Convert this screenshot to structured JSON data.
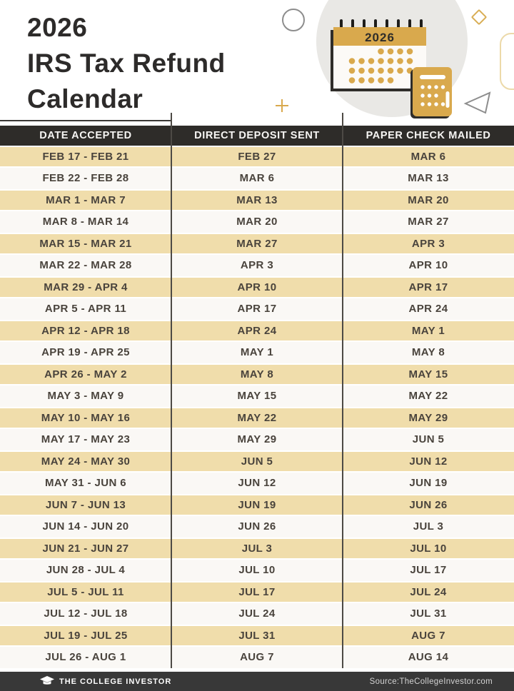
{
  "page": {
    "title_lines": [
      "2026",
      "IRS Tax Refund",
      "Calendar"
    ]
  },
  "illustration": {
    "calendar_year": "2026"
  },
  "chart_data": {
    "type": "table",
    "title": "2026 IRS Tax Refund Calendar",
    "columns": [
      "DATE ACCEPTED",
      "DIRECT DEPOSIT SENT",
      "PAPER CHECK MAILED"
    ],
    "rows": [
      [
        "FEB 17 - FEB 21",
        "FEB 27",
        "MAR 6"
      ],
      [
        "FEB 22 - FEB 28",
        "MAR 6",
        "MAR 13"
      ],
      [
        "MAR 1 - MAR 7",
        "MAR 13",
        "MAR 20"
      ],
      [
        "MAR 8 - MAR 14",
        "MAR 20",
        "MAR 27"
      ],
      [
        "MAR 15 - MAR 21",
        "MAR 27",
        "APR 3"
      ],
      [
        "MAR 22 - MAR 28",
        "APR 3",
        "APR 10"
      ],
      [
        "MAR 29 - APR 4",
        "APR 10",
        "APR 17"
      ],
      [
        "APR 5 - APR 11",
        "APR 17",
        "APR 24"
      ],
      [
        "APR 12 - APR 18",
        "APR 24",
        "MAY 1"
      ],
      [
        "APR 19 - APR 25",
        "MAY 1",
        "MAY 8"
      ],
      [
        "APR 26 - MAY 2",
        "MAY 8",
        "MAY 15"
      ],
      [
        "MAY 3 - MAY 9",
        "MAY 15",
        "MAY 22"
      ],
      [
        "MAY 10 - MAY 16",
        "MAY 22",
        "MAY 29"
      ],
      [
        "MAY 17 - MAY 23",
        "MAY 29",
        "JUN 5"
      ],
      [
        "MAY 24 - MAY 30",
        "JUN 5",
        "JUN 12"
      ],
      [
        "MAY 31 - JUN 6",
        "JUN 12",
        "JUN 19"
      ],
      [
        "JUN 7 - JUN 13",
        "JUN 19",
        "JUN 26"
      ],
      [
        "JUN 14 - JUN 20",
        "JUN 26",
        "JUL 3"
      ],
      [
        "JUN 21 - JUN 27",
        "JUL 3",
        "JUL 10"
      ],
      [
        "JUN 28 - JUL 4",
        "JUL 10",
        "JUL 17"
      ],
      [
        "JUL 5 - JUL 11",
        "JUL 17",
        "JUL 24"
      ],
      [
        "JUL 12 - JUL 18",
        "JUL 24",
        "JUL 31"
      ],
      [
        "JUL 19 - JUL 25",
        "JUL 31",
        "AUG 7"
      ],
      [
        "JUL 26 - AUG 1",
        "AUG 7",
        "AUG 14"
      ]
    ]
  },
  "footer": {
    "brand": "THE COLLEGE INVESTOR",
    "source": "Source:TheCollegeInvestor.com"
  },
  "colors": {
    "accent_gold": "#d9a94d",
    "row_tan": "#f0ddab",
    "bar_dark": "#2e2c29",
    "row_text": "#49433c"
  }
}
